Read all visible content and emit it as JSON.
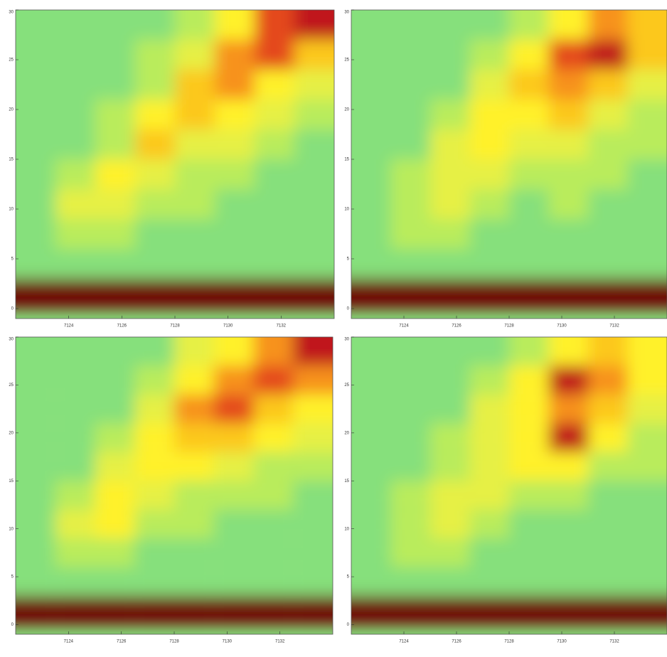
{
  "chart_data": [
    {
      "type": "contour",
      "xlim": [
        7122,
        7134
      ],
      "ylim": [
        -1,
        30
      ],
      "xticks": [
        7124,
        7126,
        7128,
        7130,
        7132
      ],
      "yticks": [
        0,
        5,
        10,
        15,
        20,
        25,
        30
      ],
      "x": [
        7122.75,
        7124.25,
        7125.75,
        7127.25,
        7128.75,
        7130.25,
        7131.75,
        7133.25
      ],
      "y": [
        28.5,
        25.5,
        22.5,
        19.5,
        16.5,
        13.5,
        10.5,
        7.5,
        4.5,
        1.5
      ],
      "colors": [
        "#86e07c",
        "#b9ec5c",
        "#e6f045",
        "#fff12c",
        "#fcc81f",
        "#f7921a",
        "#e4481a",
        "#c0121a",
        "#6e0006"
      ],
      "z": [
        [
          1,
          1,
          1,
          1,
          2,
          4,
          7,
          8
        ],
        [
          1,
          1,
          1,
          2,
          3,
          6,
          7,
          5
        ],
        [
          1,
          1,
          1,
          2,
          5,
          6,
          4,
          3
        ],
        [
          1,
          1,
          2,
          4,
          5,
          4,
          3,
          2
        ],
        [
          1,
          1,
          2,
          5,
          3,
          3,
          2,
          1
        ],
        [
          1,
          2,
          4,
          3,
          2,
          2,
          1,
          1
        ],
        [
          1,
          3,
          3,
          2,
          2,
          1,
          1,
          1
        ],
        [
          1,
          2,
          2,
          1,
          1,
          1,
          1,
          1
        ],
        [
          1,
          1,
          1,
          1,
          1,
          1,
          1,
          1
        ],
        [
          9,
          9,
          9,
          9,
          9,
          9,
          9,
          9
        ]
      ]
    },
    {
      "type": "contour",
      "xlim": [
        7122,
        7134
      ],
      "ylim": [
        -1,
        30
      ],
      "xticks": [
        7124,
        7126,
        7128,
        7130,
        7132
      ],
      "yticks": [
        0,
        5,
        10,
        15,
        20,
        25,
        30
      ],
      "x": [
        7122.75,
        7124.25,
        7125.75,
        7127.25,
        7128.75,
        7130.25,
        7131.75,
        7133.25
      ],
      "y": [
        28.5,
        25.5,
        22.5,
        19.5,
        16.5,
        13.5,
        10.5,
        7.5,
        4.5,
        1.5
      ],
      "colors": [
        "#86e07c",
        "#b9ec5c",
        "#e6f045",
        "#fff12c",
        "#fcc81f",
        "#f7921a",
        "#e4481a",
        "#c0121a",
        "#6e0006"
      ],
      "z": [
        [
          1,
          1,
          1,
          1,
          2,
          4,
          6,
          5
        ],
        [
          1,
          1,
          1,
          2,
          4,
          7,
          8,
          5
        ],
        [
          1,
          1,
          1,
          3,
          5,
          6,
          5,
          3
        ],
        [
          1,
          1,
          2,
          4,
          4,
          5,
          3,
          2
        ],
        [
          1,
          1,
          3,
          4,
          3,
          3,
          2,
          2
        ],
        [
          1,
          2,
          3,
          3,
          2,
          2,
          2,
          1
        ],
        [
          1,
          2,
          3,
          2,
          1,
          2,
          1,
          1
        ],
        [
          1,
          2,
          2,
          1,
          1,
          1,
          1,
          1
        ],
        [
          1,
          1,
          1,
          1,
          1,
          1,
          1,
          1
        ],
        [
          9,
          9,
          9,
          9,
          9,
          9,
          9,
          9
        ]
      ]
    },
    {
      "type": "contour",
      "xlim": [
        7122,
        7134
      ],
      "ylim": [
        -1,
        30
      ],
      "xticks": [
        7124,
        7126,
        7128,
        7130,
        7132
      ],
      "yticks": [
        0,
        5,
        10,
        15,
        20,
        25,
        30
      ],
      "x": [
        7122.75,
        7124.25,
        7125.75,
        7127.25,
        7128.75,
        7130.25,
        7131.75,
        7133.25
      ],
      "y": [
        28.5,
        25.5,
        22.5,
        19.5,
        16.5,
        13.5,
        10.5,
        7.5,
        4.5,
        1.5
      ],
      "colors": [
        "#86e07c",
        "#b9ec5c",
        "#e6f045",
        "#fff12c",
        "#fcc81f",
        "#f7921a",
        "#e4481a",
        "#c0121a",
        "#6e0006"
      ],
      "z": [
        [
          1,
          1,
          1,
          1,
          3,
          4,
          6,
          8
        ],
        [
          1,
          1,
          1,
          2,
          4,
          6,
          7,
          6
        ],
        [
          1,
          1,
          1,
          3,
          6,
          7,
          5,
          4
        ],
        [
          1,
          1,
          2,
          4,
          5,
          5,
          4,
          3
        ],
        [
          1,
          1,
          3,
          4,
          4,
          3,
          2,
          2
        ],
        [
          1,
          2,
          4,
          3,
          2,
          2,
          2,
          1
        ],
        [
          1,
          3,
          4,
          2,
          2,
          1,
          1,
          1
        ],
        [
          1,
          2,
          2,
          1,
          1,
          1,
          1,
          1
        ],
        [
          1,
          1,
          1,
          1,
          1,
          1,
          1,
          1
        ],
        [
          9,
          9,
          9,
          9,
          9,
          9,
          9,
          9
        ]
      ]
    },
    {
      "type": "contour",
      "xlim": [
        7122,
        7134
      ],
      "ylim": [
        -1,
        30
      ],
      "xticks": [
        7124,
        7126,
        7128,
        7130,
        7132
      ],
      "yticks": [
        0,
        5,
        10,
        15,
        20,
        25,
        30
      ],
      "x": [
        7122.75,
        7124.25,
        7125.75,
        7127.25,
        7128.75,
        7130.25,
        7131.75,
        7133.25
      ],
      "y": [
        28.5,
        25.5,
        22.5,
        19.5,
        16.5,
        13.5,
        10.5,
        7.5,
        4.5,
        1.5
      ],
      "colors": [
        "#86e07c",
        "#b9ec5c",
        "#e6f045",
        "#fff12c",
        "#fcc81f",
        "#f7921a",
        "#e4481a",
        "#c0121a",
        "#6e0006"
      ],
      "z": [
        [
          1,
          1,
          1,
          1,
          2,
          4,
          5,
          4
        ],
        [
          1,
          1,
          1,
          2,
          4,
          8,
          6,
          4
        ],
        [
          1,
          1,
          1,
          3,
          4,
          6,
          5,
          3
        ],
        [
          1,
          1,
          2,
          3,
          4,
          8,
          4,
          2
        ],
        [
          1,
          1,
          2,
          3,
          4,
          4,
          2,
          2
        ],
        [
          1,
          2,
          3,
          3,
          2,
          2,
          1,
          1
        ],
        [
          1,
          2,
          3,
          2,
          1,
          1,
          1,
          1
        ],
        [
          1,
          2,
          2,
          1,
          1,
          1,
          1,
          1
        ],
        [
          1,
          1,
          1,
          1,
          1,
          1,
          1,
          1
        ],
        [
          9,
          9,
          9,
          9,
          9,
          9,
          9,
          9
        ]
      ]
    }
  ]
}
